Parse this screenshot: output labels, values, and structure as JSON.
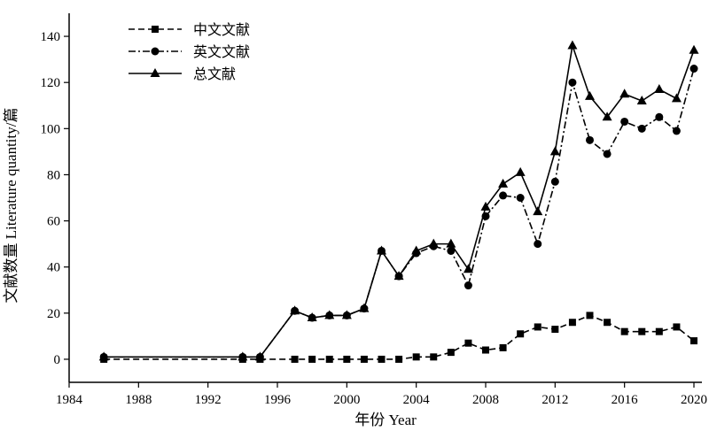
{
  "chart_data": {
    "type": "line",
    "xlabel": "年份 Year",
    "ylabel": "文献数量 Literature quantity/篇",
    "xlim": [
      1984,
      2020
    ],
    "ylim": [
      -10,
      150
    ],
    "xticks": [
      1984,
      1988,
      1992,
      1996,
      2000,
      2004,
      2008,
      2012,
      2016,
      2020
    ],
    "yticks": [
      0,
      20,
      40,
      60,
      80,
      100,
      120,
      140
    ],
    "legend_position": "top-left",
    "grid": false,
    "series": [
      {
        "name": "中文文献",
        "marker": "square",
        "line_style": "dashed",
        "x": [
          1986,
          1994,
          1995,
          1997,
          1998,
          1999,
          2000,
          2001,
          2002,
          2003,
          2004,
          2005,
          2006,
          2007,
          2008,
          2009,
          2010,
          2011,
          2012,
          2013,
          2014,
          2015,
          2016,
          2017,
          2018,
          2019,
          2020
        ],
        "y": [
          0,
          0,
          0,
          0,
          0,
          0,
          0,
          0,
          0,
          0,
          1,
          1,
          3,
          7,
          4,
          5,
          11,
          14,
          13,
          16,
          19,
          16,
          12,
          12,
          12,
          14,
          8
        ]
      },
      {
        "name": "英文文献",
        "marker": "circle",
        "line_style": "dashdot",
        "x": [
          1986,
          1994,
          1995,
          1997,
          1998,
          1999,
          2000,
          2001,
          2002,
          2003,
          2004,
          2005,
          2006,
          2007,
          2008,
          2009,
          2010,
          2011,
          2012,
          2013,
          2014,
          2015,
          2016,
          2017,
          2018,
          2019,
          2020
        ],
        "y": [
          1,
          1,
          1,
          21,
          18,
          19,
          19,
          22,
          47,
          36,
          46,
          49,
          47,
          32,
          62,
          71,
          70,
          50,
          77,
          120,
          95,
          89,
          103,
          100,
          105,
          99,
          126
        ]
      },
      {
        "name": "总文献",
        "marker": "triangle",
        "line_style": "solid",
        "x": [
          1986,
          1994,
          1995,
          1997,
          1998,
          1999,
          2000,
          2001,
          2002,
          2003,
          2004,
          2005,
          2006,
          2007,
          2008,
          2009,
          2010,
          2011,
          2012,
          2013,
          2014,
          2015,
          2016,
          2017,
          2018,
          2019,
          2020
        ],
        "y": [
          1,
          1,
          1,
          21,
          18,
          19,
          19,
          22,
          47,
          36,
          47,
          50,
          50,
          39,
          66,
          76,
          81,
          64,
          90,
          136,
          114,
          105,
          115,
          112,
          117,
          113,
          134
        ]
      }
    ]
  }
}
